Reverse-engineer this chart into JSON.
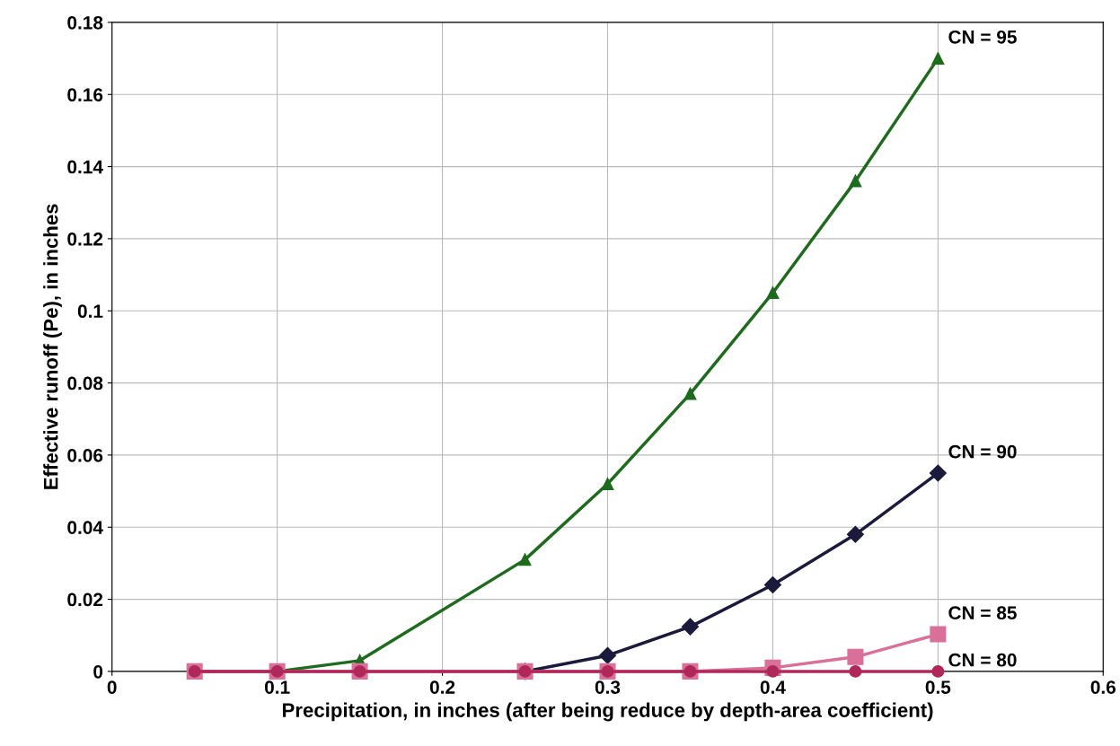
{
  "chart_data": {
    "type": "line",
    "xlabel": "Precipitation, in inches (after being reduce by depth-area coefficient)",
    "ylabel": "Effective runoff (Pe), in inches",
    "x": [
      0.05,
      0.1,
      0.15,
      0.25,
      0.3,
      0.35,
      0.4,
      0.45,
      0.5
    ],
    "series": [
      {
        "name": "CN = 95",
        "color": "#1e6b1e",
        "marker": "triangle",
        "values": [
          0,
          0,
          0.003,
          0.031,
          0.052,
          0.077,
          0.105,
          0.136,
          0.17
        ]
      },
      {
        "name": "CN = 90",
        "color": "#1c1a3c",
        "marker": "diamond",
        "values": [
          null,
          null,
          null,
          0,
          0.0044,
          0.0124,
          0.024,
          0.038,
          0.055
        ]
      },
      {
        "name": "CN = 85",
        "color": "#d9709a",
        "marker": "square",
        "values": [
          0,
          0,
          0,
          0,
          0,
          0,
          0.001,
          0.004,
          0.0103
        ]
      },
      {
        "name": "CN = 80",
        "color": "#b0285a",
        "marker": "circle",
        "values": [
          0,
          0,
          0,
          0,
          0,
          0,
          0,
          0,
          0
        ]
      }
    ],
    "xlim": [
      0,
      0.6
    ],
    "xticks": [
      0,
      0.1,
      0.2,
      0.3,
      0.4,
      0.5,
      0.6
    ],
    "ylim": [
      0,
      0.18
    ],
    "yticks": [
      0,
      0.02,
      0.04,
      0.06,
      0.08,
      0.1,
      0.12,
      0.14,
      0.16,
      0.18
    ],
    "grid": true,
    "legend": false,
    "line_style": "solid"
  }
}
